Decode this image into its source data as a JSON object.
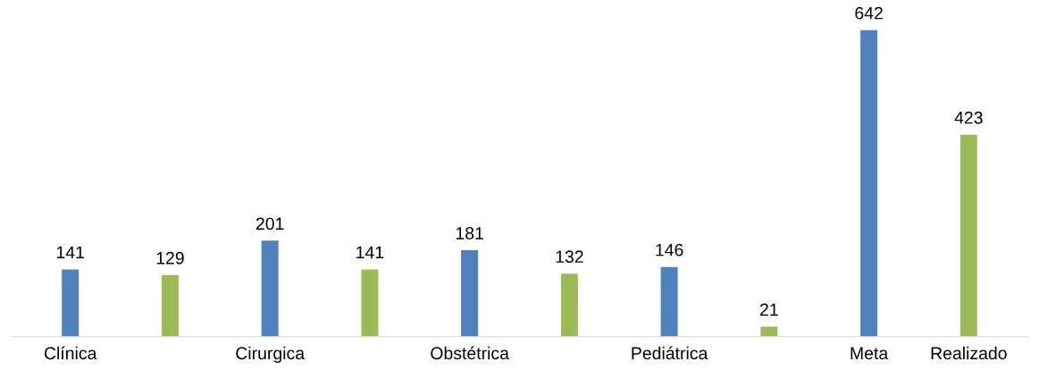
{
  "chart_data": {
    "type": "bar",
    "categories": [
      "Clínica",
      null,
      "Cirurgica",
      null,
      "Obstétrica",
      null,
      "Pediátrica",
      null,
      "Meta",
      "Realizado"
    ],
    "values": [
      141,
      129,
      201,
      141,
      181,
      132,
      146,
      21,
      642,
      423
    ],
    "colors": [
      "#4f81bd",
      "#9bbb59",
      "#4f81bd",
      "#9bbb59",
      "#4f81bd",
      "#9bbb59",
      "#4f81bd",
      "#9bbb59",
      "#4f81bd",
      "#9bbb59"
    ],
    "data_labels": true,
    "grid": false,
    "legend": false
  }
}
